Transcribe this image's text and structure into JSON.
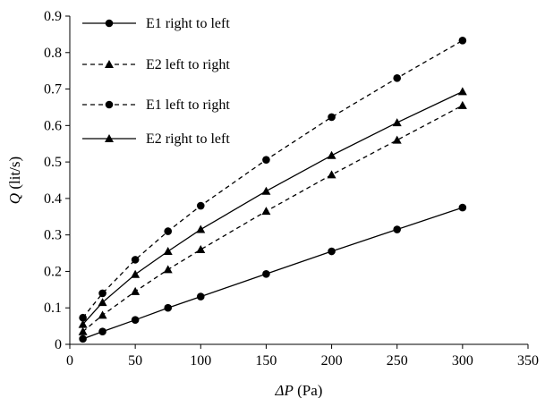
{
  "chart_data": {
    "type": "line",
    "title": "",
    "xlabel_var": "ΔP",
    "xlabel_unit": " (Pa)",
    "ylabel_var": "Q",
    "ylabel_unit": " (lit/s)",
    "xlim": [
      0,
      350
    ],
    "ylim": [
      0,
      0.9
    ],
    "xticks": [
      0,
      50,
      100,
      150,
      200,
      250,
      300,
      350
    ],
    "yticks": [
      0,
      0.1,
      0.2,
      0.3,
      0.4,
      0.5,
      0.6,
      0.7,
      0.8,
      0.9
    ],
    "grid": false,
    "legend_position": "top-left",
    "series": [
      {
        "name": "E1 right to left",
        "marker": "circle",
        "line": "solid",
        "color": "#000000",
        "x": [
          10,
          25,
          50,
          75,
          100,
          150,
          200,
          250,
          300
        ],
        "y": [
          0.015,
          0.035,
          0.067,
          0.1,
          0.131,
          0.193,
          0.255,
          0.315,
          0.375
        ]
      },
      {
        "name": "E2 left to right",
        "marker": "triangle",
        "line": "dashed",
        "color": "#000000",
        "x": [
          10,
          25,
          50,
          75,
          100,
          150,
          200,
          250,
          300
        ],
        "y": [
          0.035,
          0.08,
          0.145,
          0.205,
          0.26,
          0.365,
          0.465,
          0.56,
          0.655
        ]
      },
      {
        "name": "E1 left to right",
        "marker": "circle",
        "line": "dashed",
        "color": "#000000",
        "x": [
          10,
          25,
          50,
          75,
          100,
          150,
          200,
          250,
          300
        ],
        "y": [
          0.073,
          0.14,
          0.232,
          0.31,
          0.38,
          0.506,
          0.623,
          0.73,
          0.833
        ]
      },
      {
        "name": "E2 right to left",
        "marker": "triangle",
        "line": "solid",
        "color": "#000000",
        "x": [
          10,
          25,
          50,
          75,
          100,
          150,
          200,
          250,
          300
        ],
        "y": [
          0.055,
          0.115,
          0.192,
          0.255,
          0.315,
          0.42,
          0.518,
          0.608,
          0.693
        ]
      }
    ]
  }
}
